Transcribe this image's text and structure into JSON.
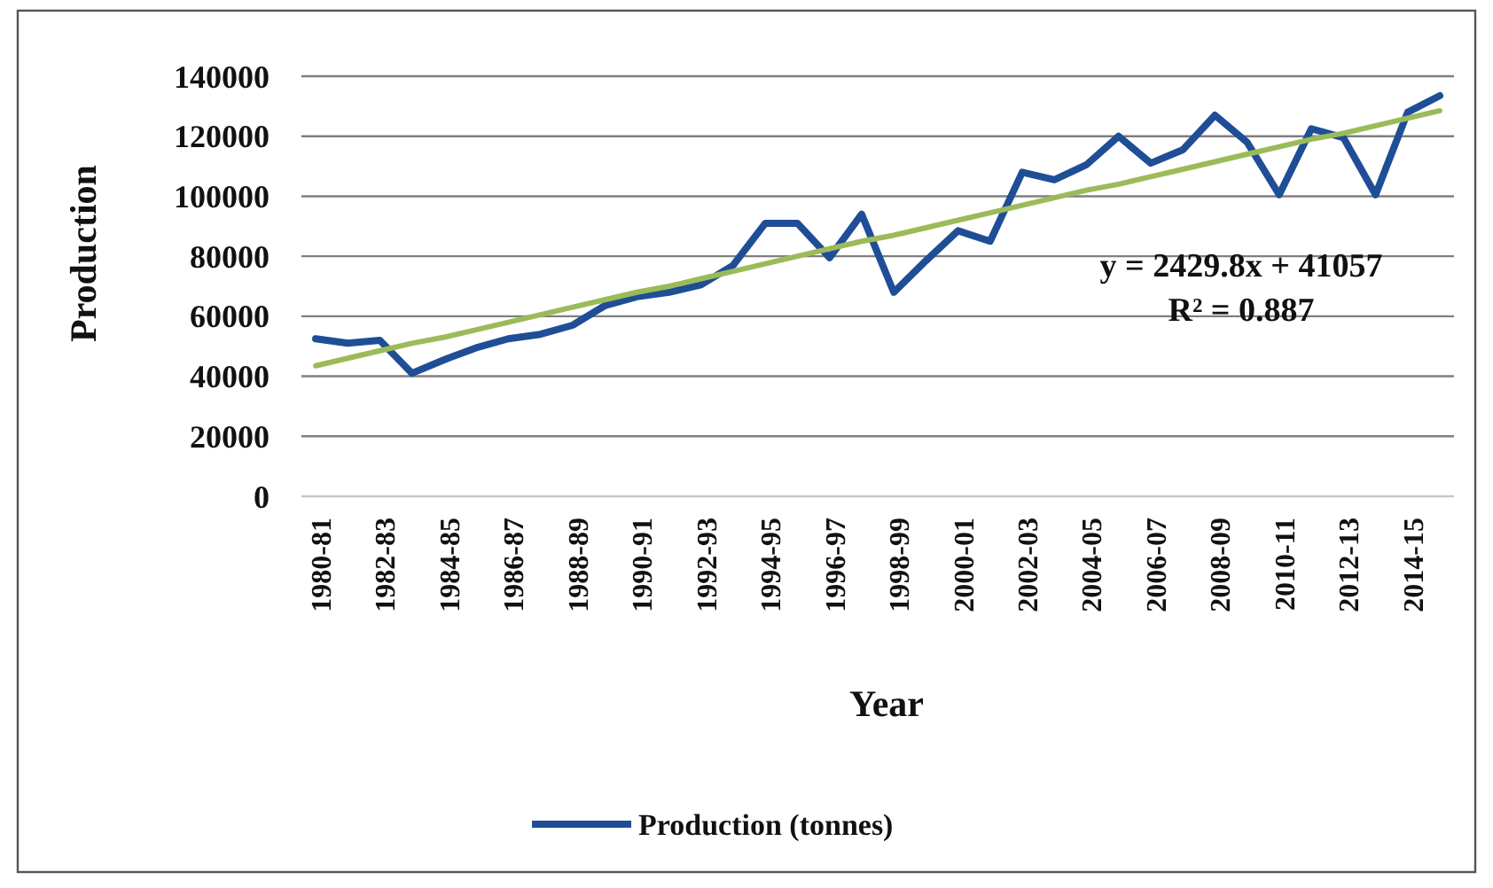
{
  "chart_data": {
    "type": "line",
    "xlabel": "Year",
    "ylabel": "Production",
    "categories": [
      "1980-81",
      null,
      "1982-83",
      null,
      "1984-85",
      null,
      "1986-87",
      null,
      "1988-89",
      null,
      "1990-91",
      null,
      "1992-93",
      null,
      "1994-95",
      null,
      "1996-97",
      null,
      "1998-99",
      null,
      "2000-01",
      null,
      "2002-03",
      null,
      "2004-05",
      null,
      "2006-07",
      null,
      "2008-09",
      null,
      "2010-11",
      null,
      "2012-13",
      null,
      "2014-15",
      null
    ],
    "series": [
      {
        "name": "Production (tonnes)",
        "color": "#1f4e96",
        "values": [
          52500,
          51000,
          52000,
          41000,
          45500,
          49500,
          52500,
          54000,
          57000,
          63500,
          66500,
          68000,
          70500,
          77000,
          91000,
          91000,
          79500,
          94000,
          68000,
          78500,
          88500,
          85000,
          108000,
          105500,
          110500,
          120000,
          111000,
          115500,
          127000,
          118000,
          100500,
          122500,
          119500,
          100500,
          128000,
          133500
        ]
      },
      {
        "type": "line",
        "color": "#9bbb59",
        "values": [
          43500,
          46000,
          48500,
          51000,
          53000,
          55500,
          58000,
          60500,
          63000,
          65500,
          68000,
          70000,
          72500,
          75000,
          77500,
          80000,
          82500,
          85000,
          87000,
          89500,
          92000,
          94500,
          97000,
          99500,
          102000,
          104000,
          106500,
          109000,
          111500,
          114000,
          116500,
          119000,
          121000,
          123500,
          126000,
          128500
        ]
      }
    ],
    "ylim": [
      0,
      140000
    ],
    "yticks": [
      0,
      20000,
      40000,
      60000,
      80000,
      100000,
      120000,
      140000
    ],
    "grid": "y",
    "legend": "bottom",
    "annotations": [
      "y = 2429.8x + 41057",
      "R² = 0.887"
    ]
  }
}
